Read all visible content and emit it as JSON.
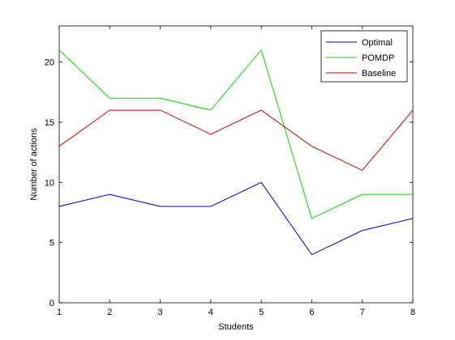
{
  "chart_data": {
    "type": "line",
    "title": "",
    "xlabel": "Students",
    "ylabel": "Number of actions",
    "x": [
      1,
      2,
      3,
      4,
      5,
      6,
      7,
      8
    ],
    "xlim": [
      1,
      8
    ],
    "ylim": [
      0,
      23
    ],
    "xticks": [
      "1",
      "2",
      "3",
      "4",
      "5",
      "6",
      "7",
      "8"
    ],
    "yticks": [
      0,
      5,
      10,
      15,
      20
    ],
    "grid": false,
    "legend_position": "top-right",
    "series": [
      {
        "name": "Optimal",
        "color": "#0000c0",
        "values": [
          8,
          9,
          8,
          8,
          10,
          4,
          6,
          7
        ]
      },
      {
        "name": "POMDP",
        "color": "#00dd00",
        "values": [
          21,
          17,
          17,
          16,
          21,
          7,
          9,
          9
        ]
      },
      {
        "name": "Baseline",
        "color": "#cc0000",
        "values": [
          13,
          16,
          16,
          14,
          16,
          13,
          11,
          16
        ]
      }
    ]
  }
}
